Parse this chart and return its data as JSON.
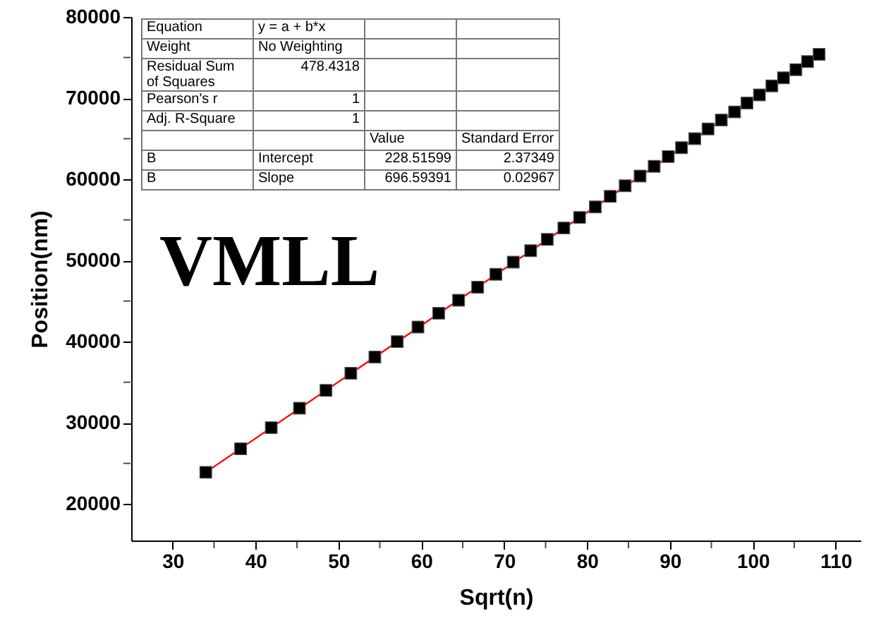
{
  "chart_data": {
    "type": "scatter",
    "xlabel": "Sqrt(n)",
    "ylabel": "Position(nm)",
    "xlim": [
      25,
      113
    ],
    "ylim": [
      15500,
      80000
    ],
    "xticks": [
      30,
      {
        "value": 35,
        "label": null
      },
      40,
      {
        "value": 45,
        "label": null
      },
      50,
      {
        "value": 55,
        "label": null
      },
      60,
      {
        "value": 65,
        "label": null
      },
      70,
      {
        "value": 75,
        "label": null
      },
      80,
      {
        "value": 85,
        "label": null
      },
      90,
      {
        "value": 95,
        "label": null
      },
      100,
      {
        "value": 105,
        "label": null
      },
      110
    ],
    "yticks": [
      20000,
      {
        "value": 25000,
        "label": null
      },
      30000,
      {
        "value": 35000,
        "label": null
      },
      40000,
      {
        "value": 45000,
        "label": null
      },
      50000,
      {
        "value": 55000,
        "label": null
      },
      60000,
      {
        "value": 65000,
        "label": null
      },
      70000,
      {
        "value": 75000,
        "label": null
      },
      80000
    ],
    "grid": false,
    "series": [
      {
        "type": "line",
        "color": "#ff0000",
        "x": [
          34.0,
          108.0
        ],
        "values": [
          23900,
          75400
        ]
      },
      {
        "color": "#000000",
        "marker": "square",
        "x": [
          34.0,
          38.2,
          41.9,
          45.3,
          48.5,
          51.5,
          54.4,
          57.1,
          59.6,
          62.1,
          64.5,
          66.8,
          69.0,
          71.1,
          73.2,
          75.2,
          77.2,
          79.1,
          81.0,
          82.8,
          84.6,
          86.4,
          88.1,
          89.8,
          91.4,
          93.0,
          94.6,
          96.2,
          97.8,
          99.3,
          100.8,
          102.3,
          103.7,
          105.2,
          106.6,
          108.0
        ],
        "values": [
          23900,
          26800,
          29400,
          31800,
          34000,
          36100,
          38100,
          40000,
          41800,
          43500,
          45100,
          46700,
          48300,
          49800,
          51200,
          52600,
          54000,
          55300,
          56600,
          57900,
          59200,
          60400,
          61600,
          62800,
          63900,
          65000,
          66200,
          67300,
          68300,
          69400,
          70400,
          71500,
          72500,
          73500,
          74500,
          75400
        ]
      }
    ],
    "annotations": [
      "Equation",
      "y = a + b*x",
      "Weight",
      "No Weighting",
      "Residual Sum of Squares",
      "478.4318",
      "Pearson's r",
      "1",
      "Adj. R-Square",
      "1",
      "Value",
      "Standard Error",
      "B",
      "Intercept",
      "228.51599",
      "2.37349",
      "B",
      "Slope",
      "696.59391",
      "0.02967",
      "VMLL"
    ]
  }
}
